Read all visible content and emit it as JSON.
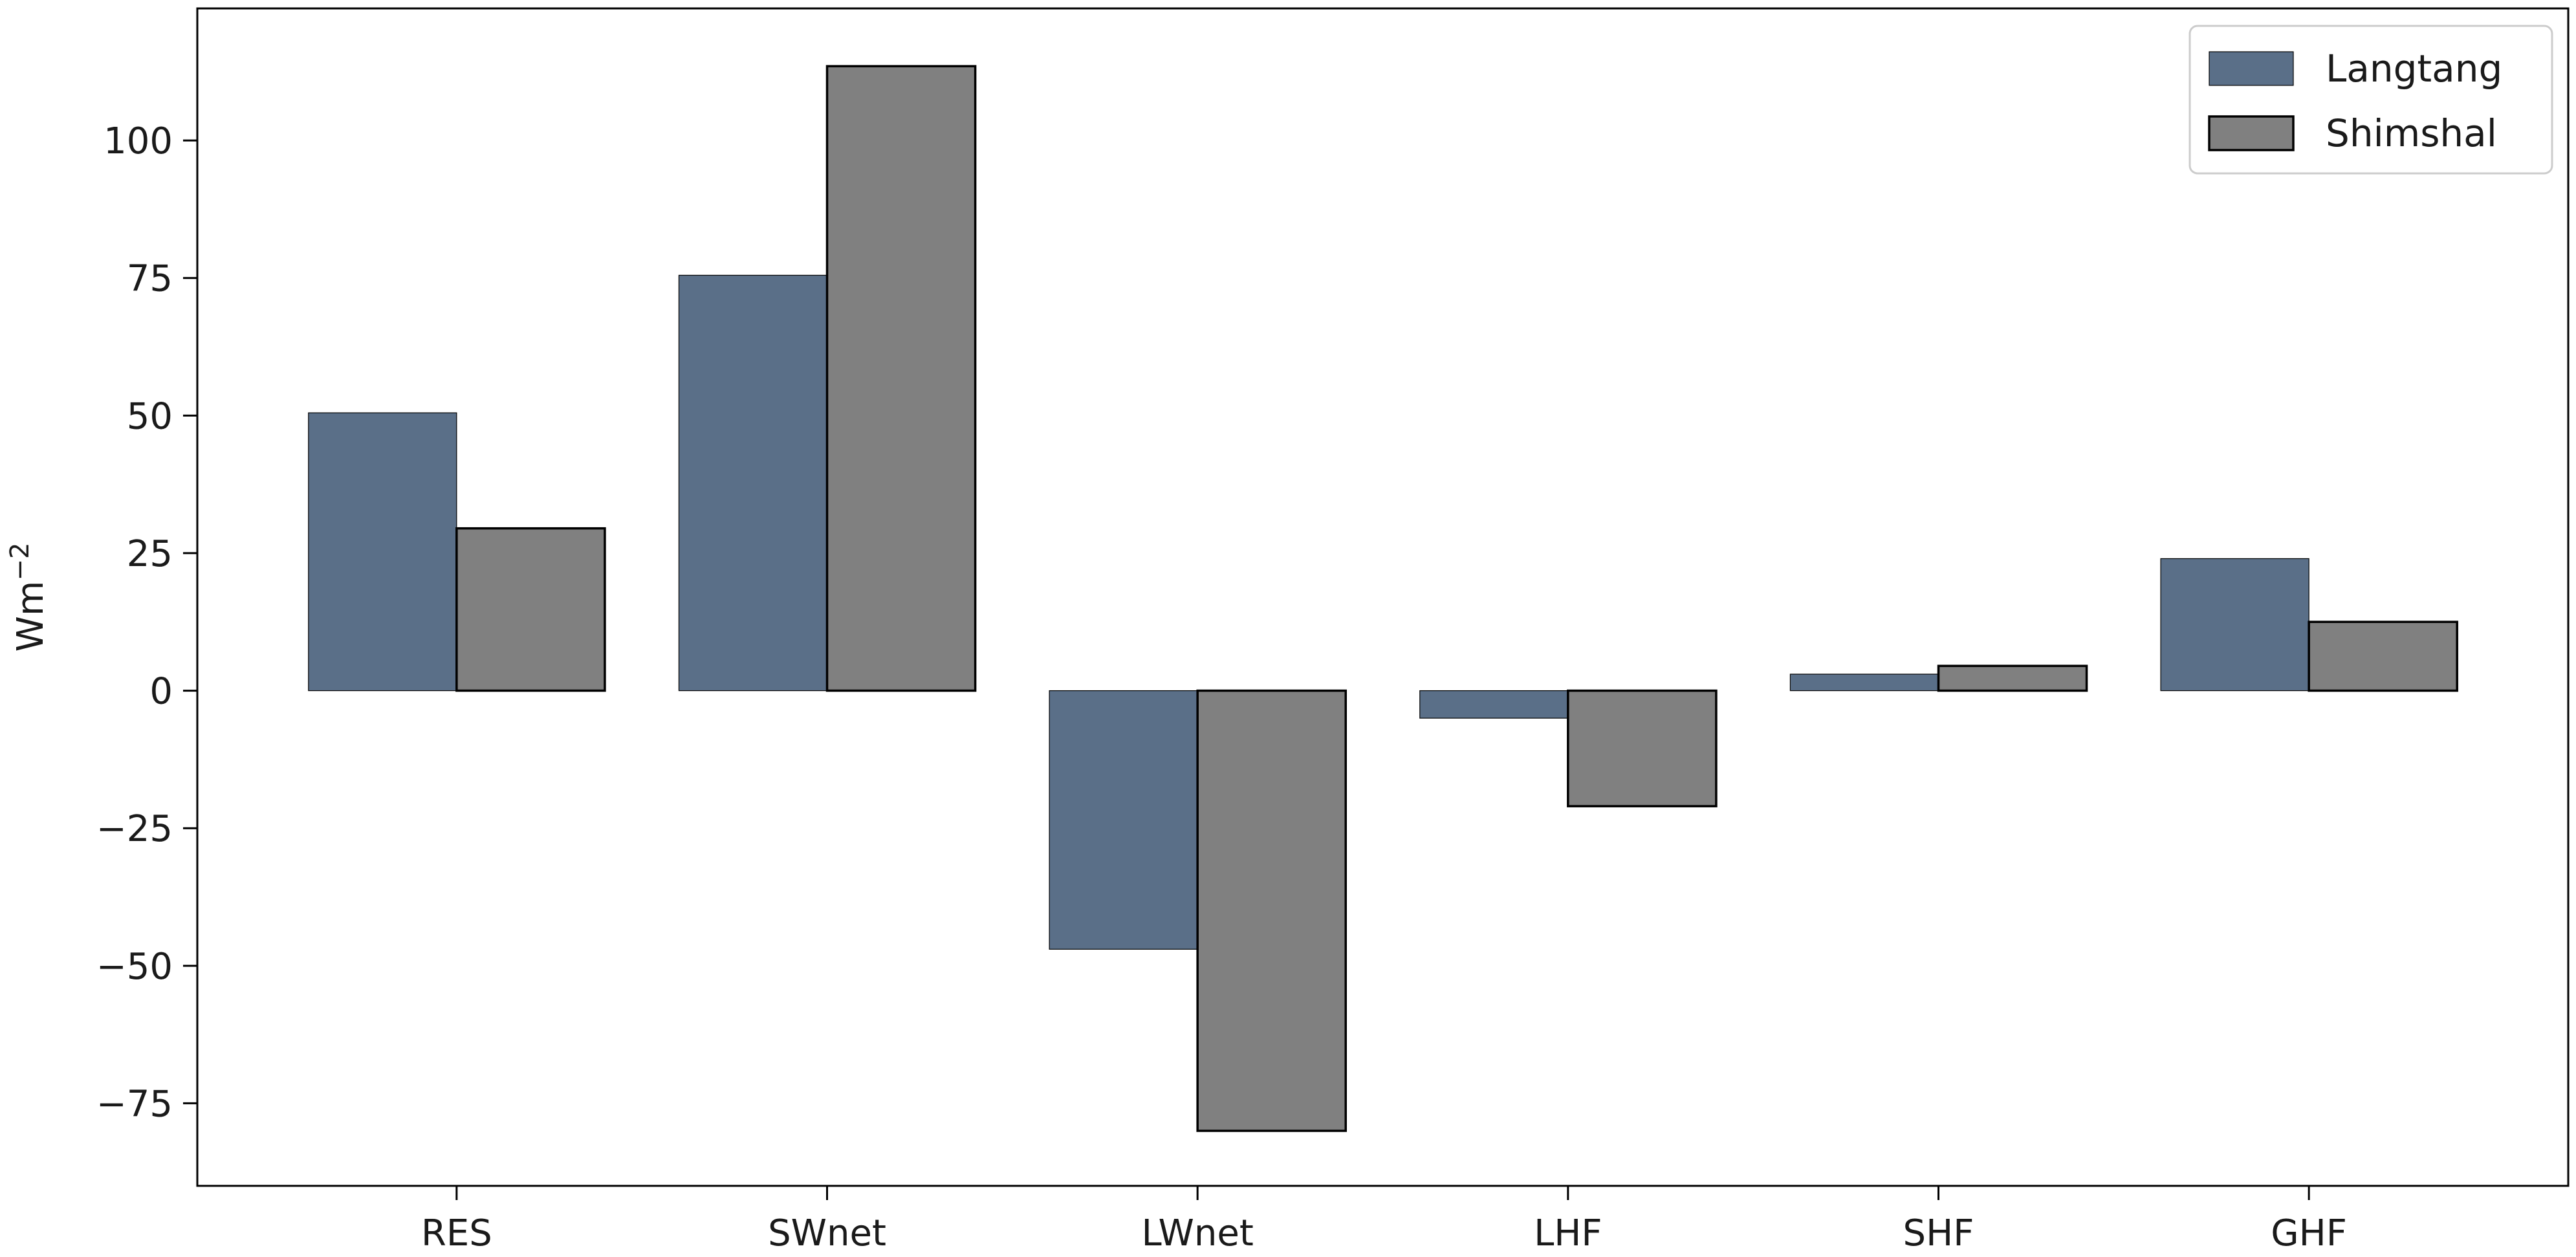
{
  "chart_data": {
    "type": "bar",
    "categories": [
      "RES",
      "SWnet",
      "LWnet",
      "LHF",
      "SHF",
      "GHF"
    ],
    "series": [
      {
        "name": "Langtang",
        "values": [
          50.5,
          75.5,
          -47.0,
          -5.0,
          3.0,
          24.0
        ],
        "color": "#5a6f88"
      },
      {
        "name": "Shimshal",
        "values": [
          29.5,
          113.5,
          -80.0,
          -21.0,
          4.5,
          12.5
        ],
        "color": "#808080"
      }
    ],
    "ylabel": "Wm",
    "ylabel_superscript": "−2",
    "ylim": [
      -90,
      124
    ],
    "yticks": [
      -75,
      -50,
      -25,
      0,
      25,
      50,
      75,
      100
    ],
    "ytick_labels": [
      "−75",
      "−50",
      "−25",
      "0",
      "25",
      "50",
      "75",
      "100"
    ],
    "grid": false,
    "legend_position": "top-right",
    "edge_color": "#000000"
  }
}
